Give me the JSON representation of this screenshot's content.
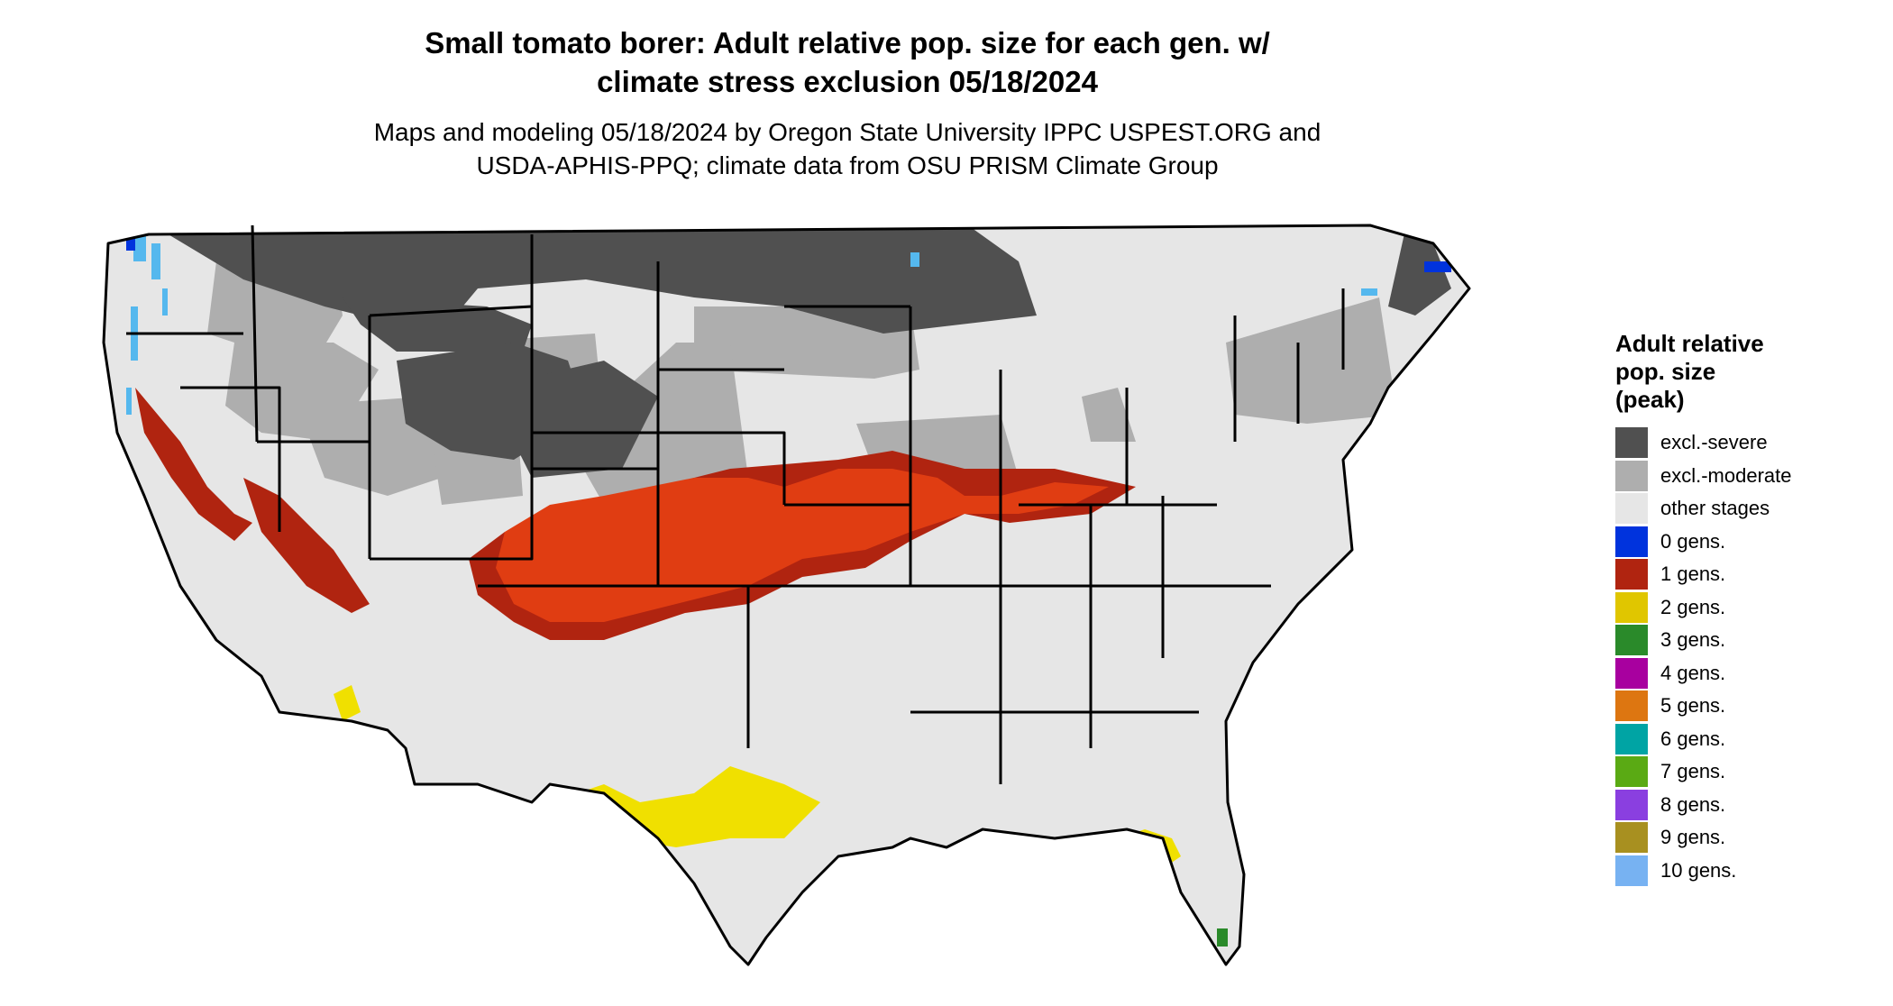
{
  "title_line1": "Small tomato borer: Adult relative pop. size for each gen. w/",
  "title_line2": "climate stress exclusion 05/18/2024",
  "subtitle_line1": "Maps and modeling 05/18/2024 by Oregon State University IPPC USPEST.ORG and",
  "subtitle_line2": "USDA-APHIS-PPQ; climate data from OSU PRISM Climate Group",
  "legend": {
    "title_line1": "Adult relative",
    "title_line2": "pop. size",
    "title_line3": "(peak)",
    "items": [
      {
        "label": "excl.-severe",
        "color": "#505050"
      },
      {
        "label": "excl.-moderate",
        "color": "#aeaeae"
      },
      {
        "label": "other stages",
        "color": "#e6e6e6"
      },
      {
        "label": "0 gens.",
        "color": "#0033dd"
      },
      {
        "label": "1 gens.",
        "color": "#b02410"
      },
      {
        "label": "2 gens.",
        "color": "#e0c600"
      },
      {
        "label": "3 gens.",
        "color": "#2a8a2a"
      },
      {
        "label": "4 gens.",
        "color": "#a8009f"
      },
      {
        "label": "5 gens.",
        "color": "#dd7611"
      },
      {
        "label": "6 gens.",
        "color": "#00a4a4"
      },
      {
        "label": "7 gens.",
        "color": "#5aaa14"
      },
      {
        "label": "8 gens.",
        "color": "#8a3fe0"
      },
      {
        "label": "9 gens.",
        "color": "#a89020"
      },
      {
        "label": "10 gens.",
        "color": "#77b2f2"
      }
    ]
  },
  "map_colors": {
    "severe": "#505050",
    "moderate": "#aeaeae",
    "other": "#e6e6e6",
    "gen0": "#0033dd",
    "gen1": "#b02410",
    "gen1_bright": "#e03d12",
    "gen2": "#f0e000",
    "gen3": "#2a8a2a",
    "cold_blue": "#55b8ee"
  }
}
